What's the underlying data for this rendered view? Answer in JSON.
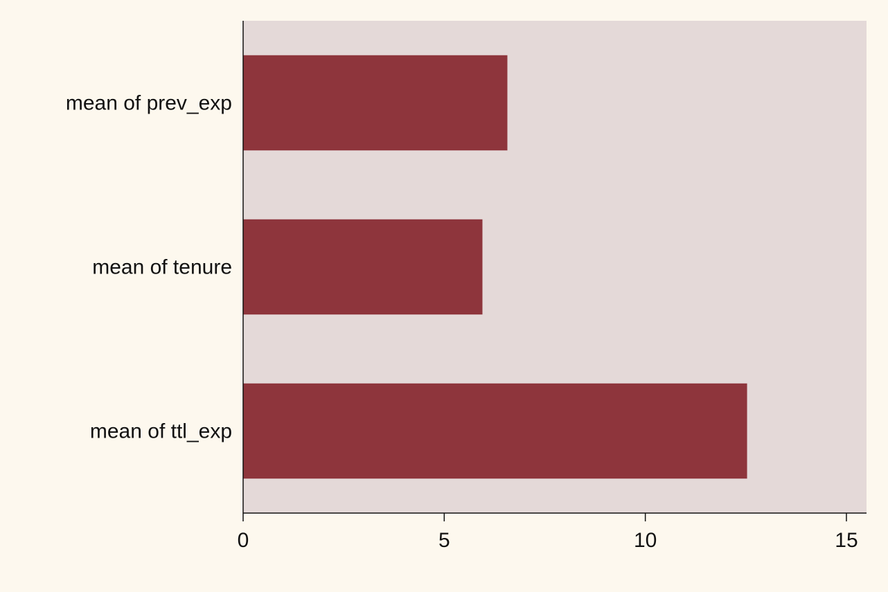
{
  "colors": {
    "page_background": "#fdf8ee",
    "plot_background": "#e4d9d8",
    "bar": "#8e353c",
    "axis": "#111111"
  },
  "chart_data": {
    "type": "bar",
    "orientation": "horizontal",
    "categories": [
      "mean of prev_exp",
      "mean of tenure",
      "mean of ttl_exp"
    ],
    "values": [
      6.57,
      5.95,
      12.53
    ],
    "xlim": [
      0,
      15.5
    ],
    "xticks": [
      0,
      5,
      10,
      15
    ],
    "xtick_labels": [
      "0",
      "5",
      "10",
      "15"
    ],
    "title": "",
    "xlabel": "",
    "ylabel": "",
    "grid": false,
    "legend": "none"
  }
}
